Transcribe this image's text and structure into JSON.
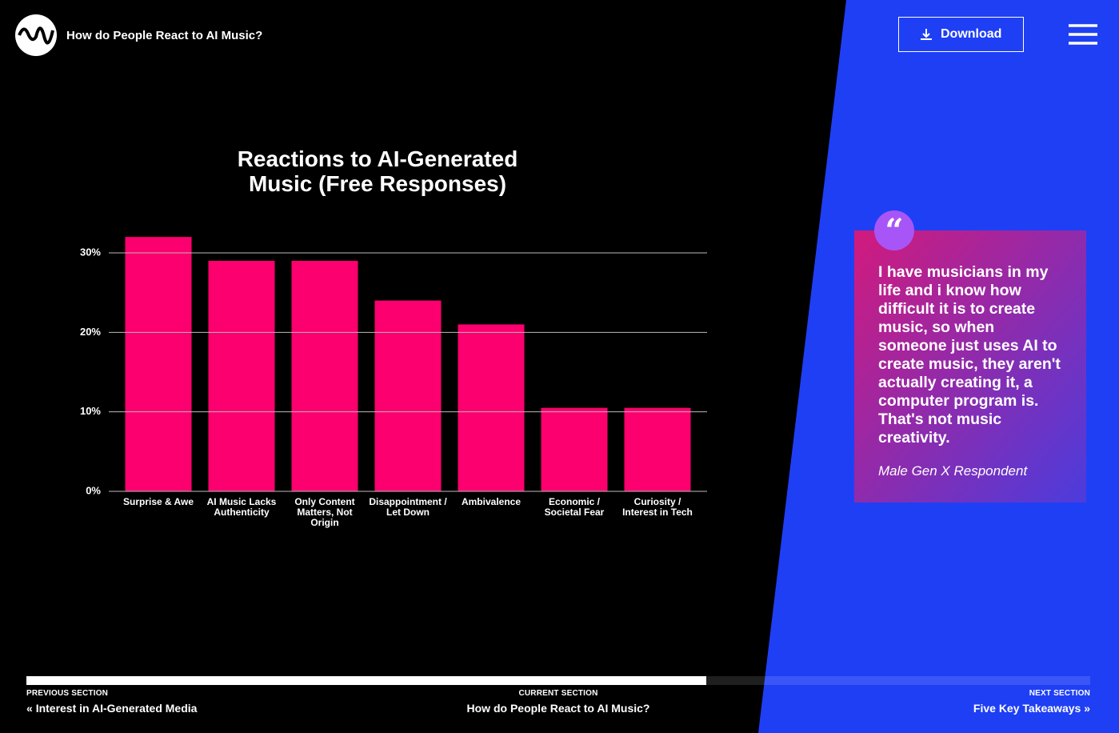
{
  "header": {
    "title": "How do People React to AI Music?",
    "download": "Download"
  },
  "chart_data": {
    "type": "bar",
    "title": "Reactions to AI-Generated Music (Free Responses)",
    "categories": [
      "Surprise & Awe",
      "AI Music Lacks Authenticity",
      "Only Content Matters, Not Origin",
      "Disappointment / Let Down",
      "Ambivalence",
      "Economic / Societal Fear",
      "Curiosity / Interest in Tech"
    ],
    "values": [
      32,
      29,
      29,
      24,
      21,
      10.5,
      10.5
    ],
    "color": "#fb006e",
    "ylim": [
      0,
      30
    ],
    "yticks": [
      {
        "value": 0,
        "label": "0%"
      },
      {
        "value": 10,
        "label": "10%"
      },
      {
        "value": 20,
        "label": "20%"
      },
      {
        "value": 30,
        "label": "30%"
      }
    ],
    "grid": true
  },
  "quote": {
    "text": "I have musicians in my life and i know how difficult it is to create music, so when someone just uses AI to create music, they aren't actually creating it, a computer program is. That's not music creativity.",
    "attribution": "Male Gen X Respondent"
  },
  "nav": {
    "previous": {
      "label": "PREVIOUS SECTION",
      "title": "Interest in AI-Generated Media"
    },
    "current": {
      "label": "CURRENT SECTION",
      "title": "How do People React to AI Music?"
    },
    "next": {
      "label": "NEXT SECTION",
      "title": "Five Key Takeaways"
    }
  }
}
